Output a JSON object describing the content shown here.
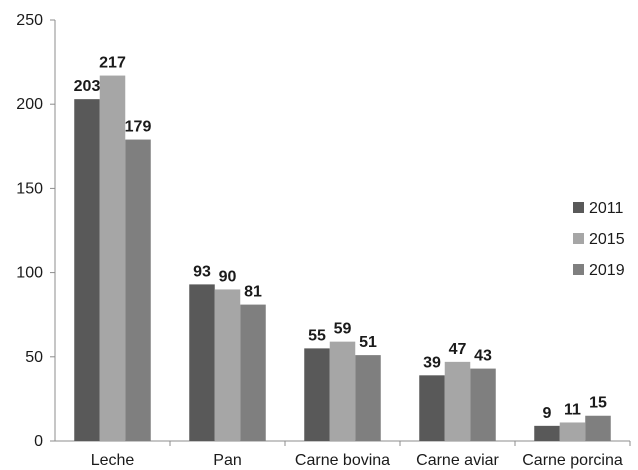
{
  "chart_data": {
    "type": "bar",
    "categories": [
      "Leche",
      "Pan",
      "Carne bovina",
      "Carne aviar",
      "Carne porcina"
    ],
    "series": [
      {
        "name": "2011",
        "values": [
          203,
          93,
          55,
          39,
          9
        ],
        "color": "#595959"
      },
      {
        "name": "2015",
        "values": [
          217,
          90,
          59,
          47,
          11
        ],
        "color": "#a6a6a6"
      },
      {
        "name": "2019",
        "values": [
          179,
          81,
          51,
          43,
          15
        ],
        "color": "#7f7f7f"
      }
    ],
    "title": "",
    "xlabel": "",
    "ylabel": "",
    "ylim": [
      0,
      250
    ],
    "yticks": [
      0,
      50,
      100,
      150,
      200,
      250
    ],
    "grid": false,
    "legend_position": "right"
  }
}
